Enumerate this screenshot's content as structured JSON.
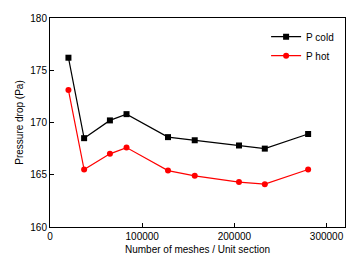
{
  "chart_data": {
    "type": "line",
    "x_label": "Number of meshes / Unit section",
    "y_label": "Pressure drop (Pa)",
    "x": [
      20000,
      37000,
      65000,
      83000,
      128000,
      157000,
      205000,
      233000,
      280000
    ],
    "series": [
      {
        "name": "P cold",
        "color": "#000000",
        "marker": "square",
        "line_style": "solid",
        "values": [
          176.2,
          168.5,
          170.2,
          170.8,
          168.6,
          168.3,
          167.8,
          167.5,
          168.9
        ]
      },
      {
        "name": "P hot",
        "color": "#ff0000",
        "marker": "circle",
        "line_style": "solid",
        "values": [
          173.1,
          165.5,
          167.0,
          167.6,
          165.4,
          164.9,
          164.3,
          164.1,
          165.5
        ]
      }
    ],
    "xlim": [
      0,
      320000
    ],
    "xticks": [
      0,
      100000,
      200000,
      300000
    ],
    "ylim": [
      160,
      180
    ],
    "yticks": [
      160,
      165,
      170,
      175,
      180
    ],
    "grid": false,
    "legend": "top right"
  }
}
